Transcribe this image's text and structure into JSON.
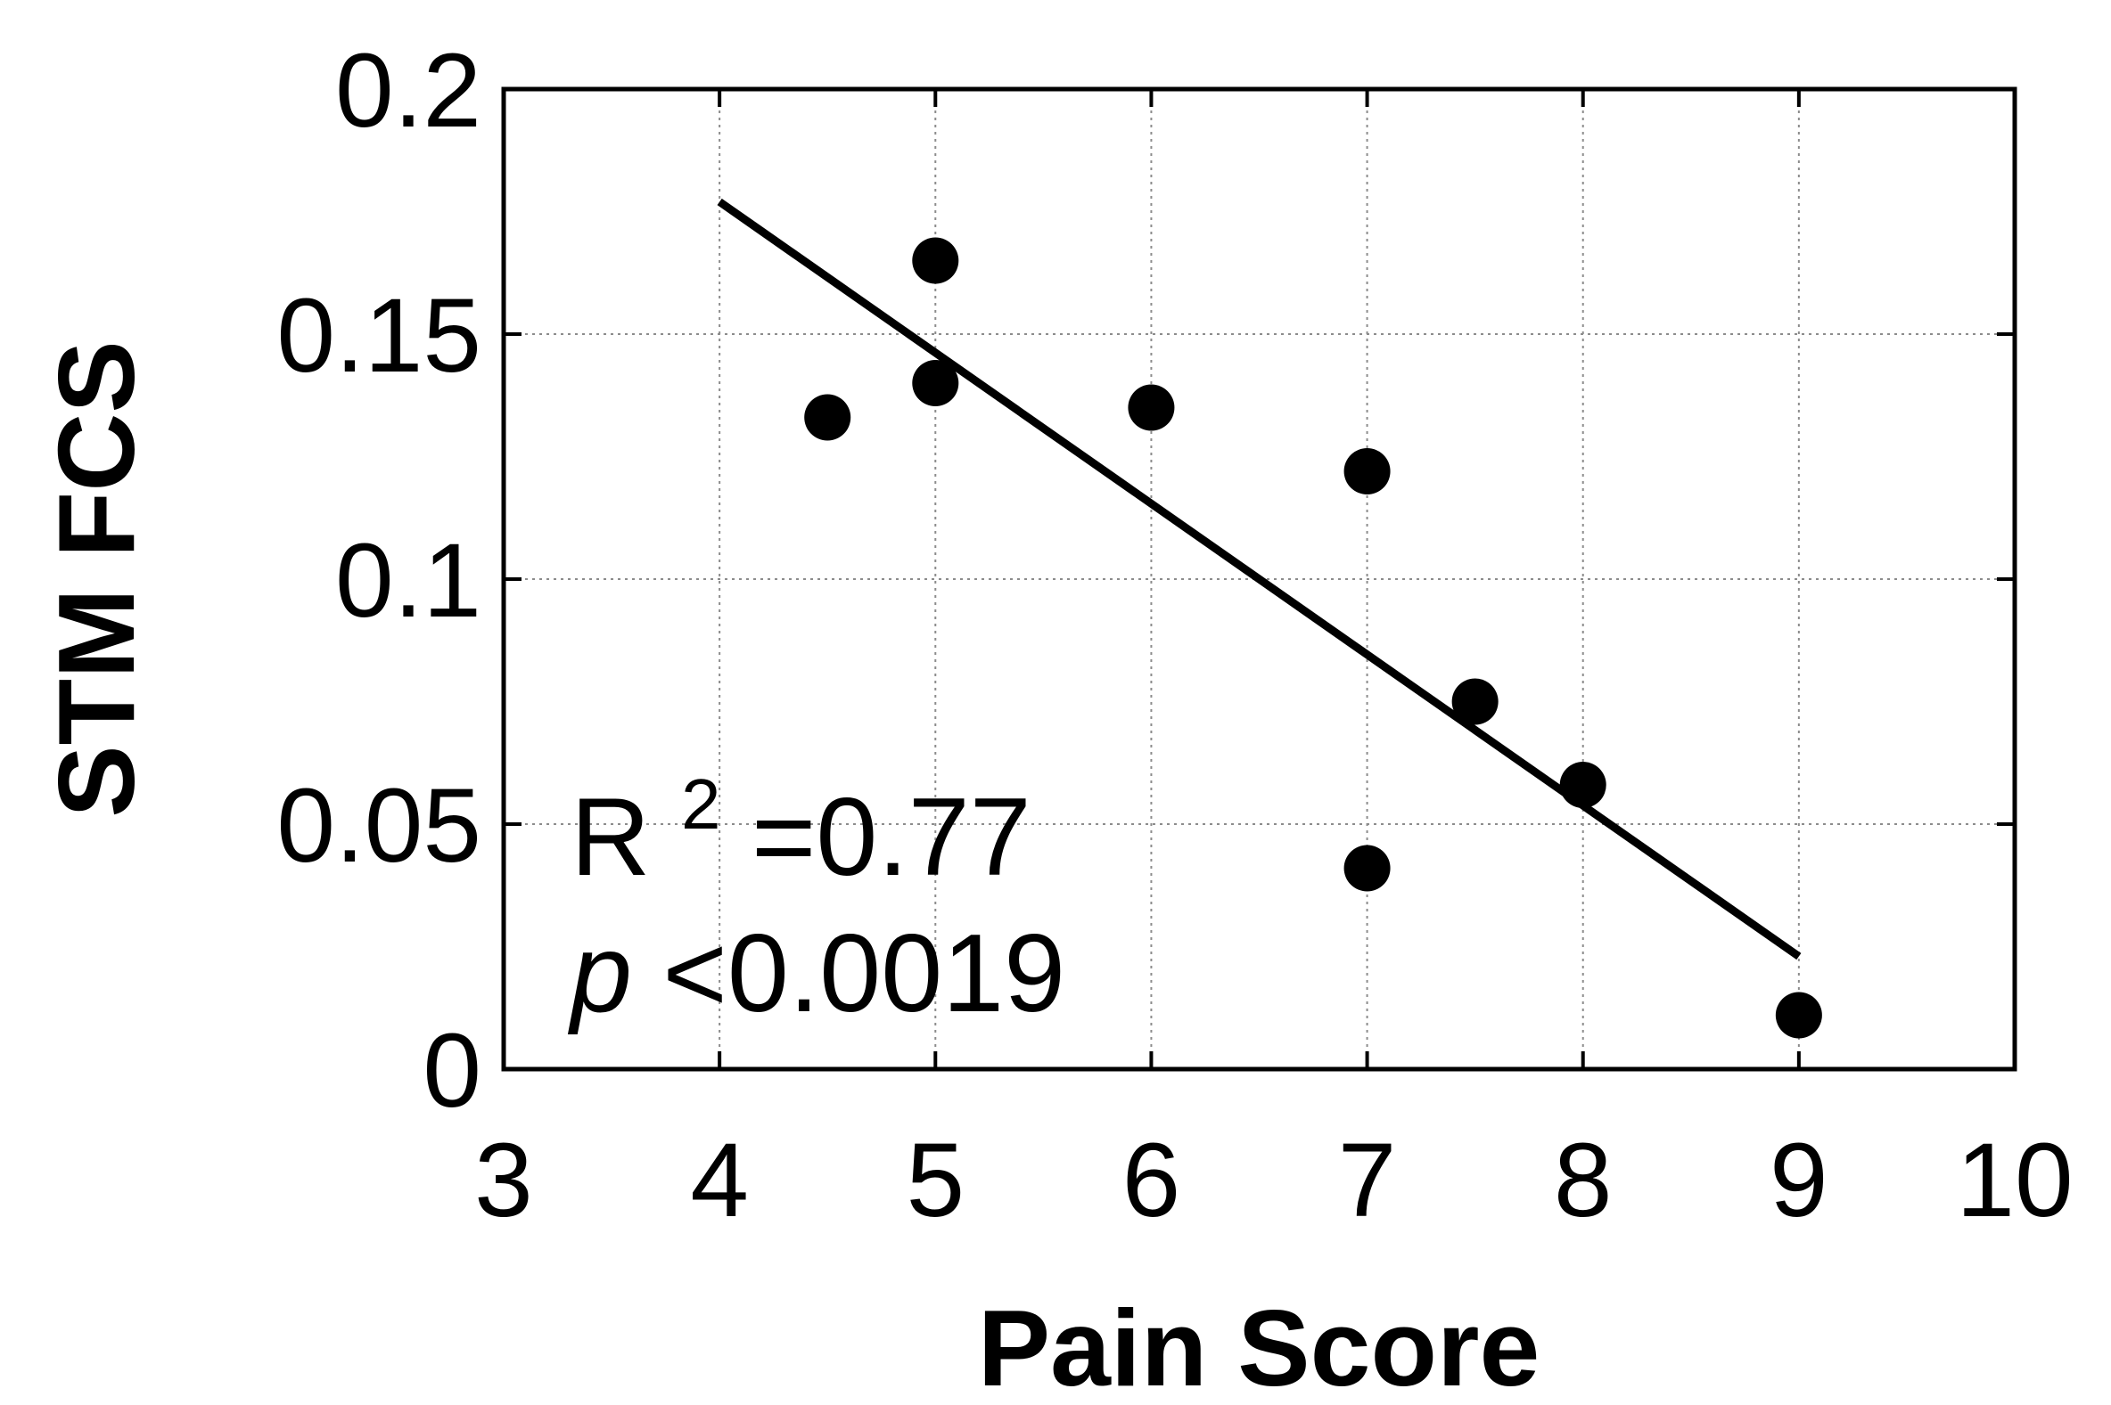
{
  "chart_data": {
    "type": "scatter",
    "xlabel": "Pain Score",
    "ylabel": "STM FCS",
    "xlim": [
      3,
      10
    ],
    "ylim": [
      0,
      0.2
    ],
    "xticks": [
      "3",
      "4",
      "5",
      "6",
      "7",
      "8",
      "9",
      "10"
    ],
    "yticks": [
      "0",
      "0.05",
      "0.1",
      "0.15",
      "0.2"
    ],
    "grid": true,
    "points": [
      {
        "x": 4.5,
        "y": 0.133
      },
      {
        "x": 5,
        "y": 0.165
      },
      {
        "x": 5,
        "y": 0.14
      },
      {
        "x": 6,
        "y": 0.135
      },
      {
        "x": 7,
        "y": 0.122
      },
      {
        "x": 7,
        "y": 0.041
      },
      {
        "x": 7.5,
        "y": 0.075
      },
      {
        "x": 8,
        "y": 0.058
      },
      {
        "x": 9,
        "y": 0.011
      }
    ],
    "fit_line": {
      "x": [
        4,
        9
      ],
      "y": [
        0.177,
        0.023
      ]
    },
    "annotation": {
      "r2_label": "R",
      "r2_superscript": "2",
      "r2_value": "=0.77",
      "p_symbol": "p",
      "p_value": "<0.0019"
    },
    "colors": {
      "marker": "#000000",
      "line": "#000000",
      "axes": "#000000",
      "grid": "#8c8c8c"
    }
  }
}
